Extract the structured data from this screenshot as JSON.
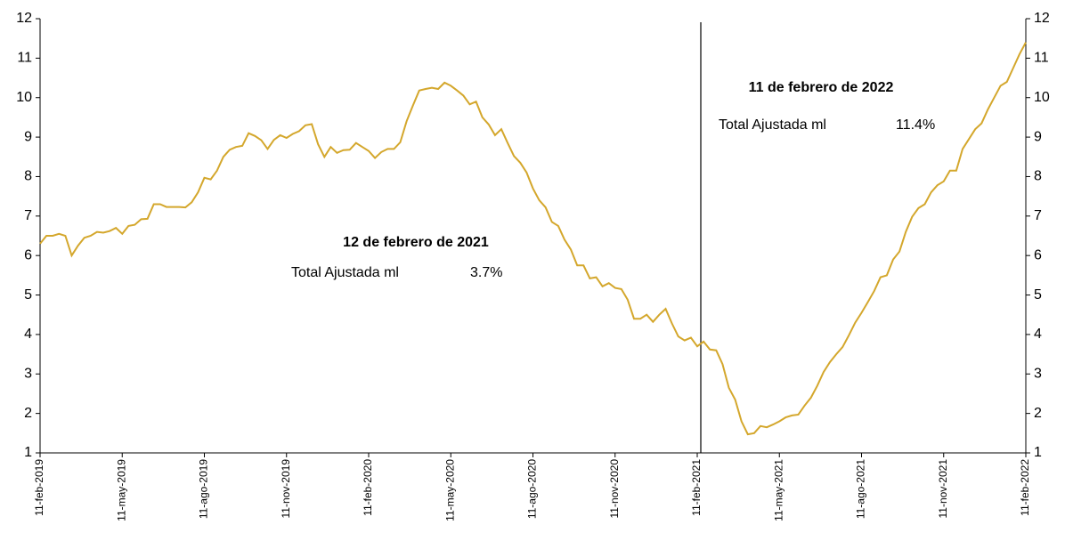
{
  "chart_data": {
    "type": "line",
    "categories": [
      "11-feb-2019",
      null,
      null,
      null,
      null,
      null,
      null,
      null,
      null,
      null,
      null,
      null,
      null,
      "11-may-2019",
      null,
      null,
      null,
      null,
      null,
      null,
      null,
      null,
      null,
      null,
      null,
      null,
      "11-ago-2019",
      null,
      null,
      null,
      null,
      null,
      null,
      null,
      null,
      null,
      null,
      null,
      null,
      "11-nov-2019",
      null,
      null,
      null,
      null,
      null,
      null,
      null,
      null,
      null,
      null,
      null,
      null,
      "11-feb-2020",
      null,
      null,
      null,
      null,
      null,
      null,
      null,
      null,
      null,
      null,
      null,
      null,
      "11-may-2020",
      null,
      null,
      null,
      null,
      null,
      null,
      null,
      null,
      null,
      null,
      null,
      null,
      "11-ago-2020",
      null,
      null,
      null,
      null,
      null,
      null,
      null,
      null,
      null,
      null,
      null,
      null,
      "11-nov-2020",
      null,
      null,
      null,
      null,
      null,
      null,
      null,
      null,
      null,
      null,
      null,
      null,
      "11-feb-2021",
      null,
      null,
      null,
      null,
      null,
      null,
      null,
      null,
      null,
      null,
      null,
      null,
      "11-may-2021",
      null,
      null,
      null,
      null,
      null,
      null,
      null,
      null,
      null,
      null,
      null,
      null,
      "11-ago-2021",
      null,
      null,
      null,
      null,
      null,
      null,
      null,
      null,
      null,
      null,
      null,
      null,
      "11-nov-2021",
      null,
      null,
      null,
      null,
      null,
      null,
      null,
      null,
      null,
      null,
      null,
      null,
      "11-feb-2022"
    ],
    "values": [
      6.3,
      6.5,
      6.5,
      6.55,
      6.5,
      6.0,
      6.25,
      6.45,
      6.5,
      6.6,
      6.58,
      6.62,
      6.7,
      6.55,
      6.75,
      6.78,
      6.92,
      6.93,
      7.3,
      7.3,
      7.23,
      7.23,
      7.23,
      7.22,
      7.35,
      7.6,
      7.97,
      7.93,
      8.15,
      8.5,
      8.68,
      8.75,
      8.78,
      9.1,
      9.03,
      8.92,
      8.7,
      8.93,
      9.05,
      8.98,
      9.08,
      9.15,
      9.3,
      9.33,
      8.82,
      8.5,
      8.75,
      8.6,
      8.67,
      8.68,
      8.85,
      8.75,
      8.65,
      8.47,
      8.62,
      8.7,
      8.7,
      8.87,
      9.4,
      9.8,
      10.18,
      10.22,
      10.25,
      10.22,
      10.38,
      10.3,
      10.18,
      10.05,
      9.83,
      9.9,
      9.5,
      9.32,
      9.05,
      9.2,
      8.85,
      8.52,
      8.35,
      8.1,
      7.7,
      7.4,
      7.22,
      6.85,
      6.75,
      6.4,
      6.15,
      5.75,
      5.75,
      5.42,
      5.45,
      5.22,
      5.3,
      5.18,
      5.15,
      4.88,
      4.4,
      4.4,
      4.5,
      4.32,
      4.5,
      4.65,
      4.28,
      3.95,
      3.85,
      3.92,
      3.7,
      3.82,
      3.62,
      3.6,
      3.25,
      2.65,
      2.35,
      1.8,
      1.47,
      1.5,
      1.68,
      1.65,
      1.72,
      1.8,
      1.9,
      1.95,
      1.97,
      2.2,
      2.4,
      2.7,
      3.05,
      3.3,
      3.5,
      3.68,
      3.98,
      4.3,
      4.55,
      4.82,
      5.1,
      5.45,
      5.5,
      5.9,
      6.1,
      6.6,
      6.98,
      7.2,
      7.3,
      7.6,
      7.78,
      7.88,
      8.15,
      8.15,
      8.7,
      8.95,
      9.2,
      9.35,
      9.7,
      10.0,
      10.3,
      10.4,
      10.75,
      11.1,
      11.4
    ],
    "color": "#d4a72c",
    "ylim": [
      1,
      12
    ],
    "yticks": [
      1,
      2,
      3,
      4,
      5,
      6,
      7,
      8,
      9,
      10,
      11,
      12
    ],
    "y2lim": [
      1,
      12
    ],
    "y2ticks": [
      1,
      2,
      3,
      4,
      5,
      6,
      7,
      8,
      9,
      10,
      11,
      12
    ],
    "annotations": [
      {
        "title": "12 de febrero de 2021",
        "label": "Total Ajustada ml",
        "value": "3.7%"
      },
      {
        "title": "11 de febrero de 2022",
        "label": "Total Ajustada ml",
        "value": "11.4%"
      }
    ]
  }
}
